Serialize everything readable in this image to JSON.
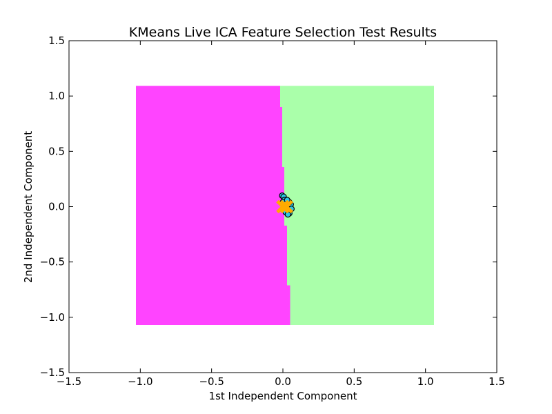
{
  "chart_data": {
    "type": "scatter",
    "title": "KMeans Live ICA Feature Selection Test Results",
    "xlabel": "1st Independent Component",
    "ylabel": "2nd Independent Component",
    "xlim": [
      -1.5,
      1.5
    ],
    "ylim": [
      -1.5,
      1.5
    ],
    "xticks": [
      "−1.5",
      "−1.0",
      "−0.5",
      "0.0",
      "0.5",
      "1.0",
      "1.5"
    ],
    "yticks": [
      "−1.5",
      "−1.0",
      "−0.5",
      "0.0",
      "0.5",
      "1.0",
      "1.5"
    ],
    "grid": false,
    "decision_regions": {
      "x_range": [
        -1.03,
        1.06
      ],
      "y_range": [
        -1.07,
        1.09
      ],
      "left_color": "#ff44ff",
      "right_color": "#aaffaa",
      "boundary": [
        {
          "y0": 0.9,
          "y1": 1.09,
          "x": -0.02
        },
        {
          "y0": 0.36,
          "y1": 0.9,
          "x": -0.005
        },
        {
          "y0": -0.17,
          "y1": 0.36,
          "x": 0.01
        },
        {
          "y0": -0.71,
          "y1": -0.17,
          "x": 0.03
        },
        {
          "y0": -1.07,
          "y1": -0.71,
          "x": 0.05
        }
      ]
    },
    "points": [
      {
        "x": -0.005,
        "y": 0.1
      },
      {
        "x": 0.005,
        "y": 0.09
      },
      {
        "x": 0.01,
        "y": 0.06
      },
      {
        "x": 0.015,
        "y": 0.03
      },
      {
        "x": 0.02,
        "y": 0.01
      },
      {
        "x": 0.025,
        "y": -0.01
      },
      {
        "x": 0.03,
        "y": -0.02
      },
      {
        "x": 0.035,
        "y": 0.02
      },
      {
        "x": 0.04,
        "y": -0.04
      },
      {
        "x": 0.045,
        "y": -0.06
      },
      {
        "x": 0.05,
        "y": 0.0
      },
      {
        "x": 0.055,
        "y": 0.02
      },
      {
        "x": 0.06,
        "y": -0.02
      },
      {
        "x": 0.02,
        "y": -0.05
      },
      {
        "x": 0.035,
        "y": -0.07
      },
      {
        "x": 0.0,
        "y": 0.04
      },
      {
        "x": 0.045,
        "y": 0.04
      },
      {
        "x": 0.03,
        "y": 0.06
      }
    ],
    "point_color": "#2ec7e6",
    "centroids": [
      {
        "x": 0.0,
        "y": 0.0
      },
      {
        "x": 0.025,
        "y": 0.0
      }
    ],
    "centroid_color": "#ffaa00"
  }
}
